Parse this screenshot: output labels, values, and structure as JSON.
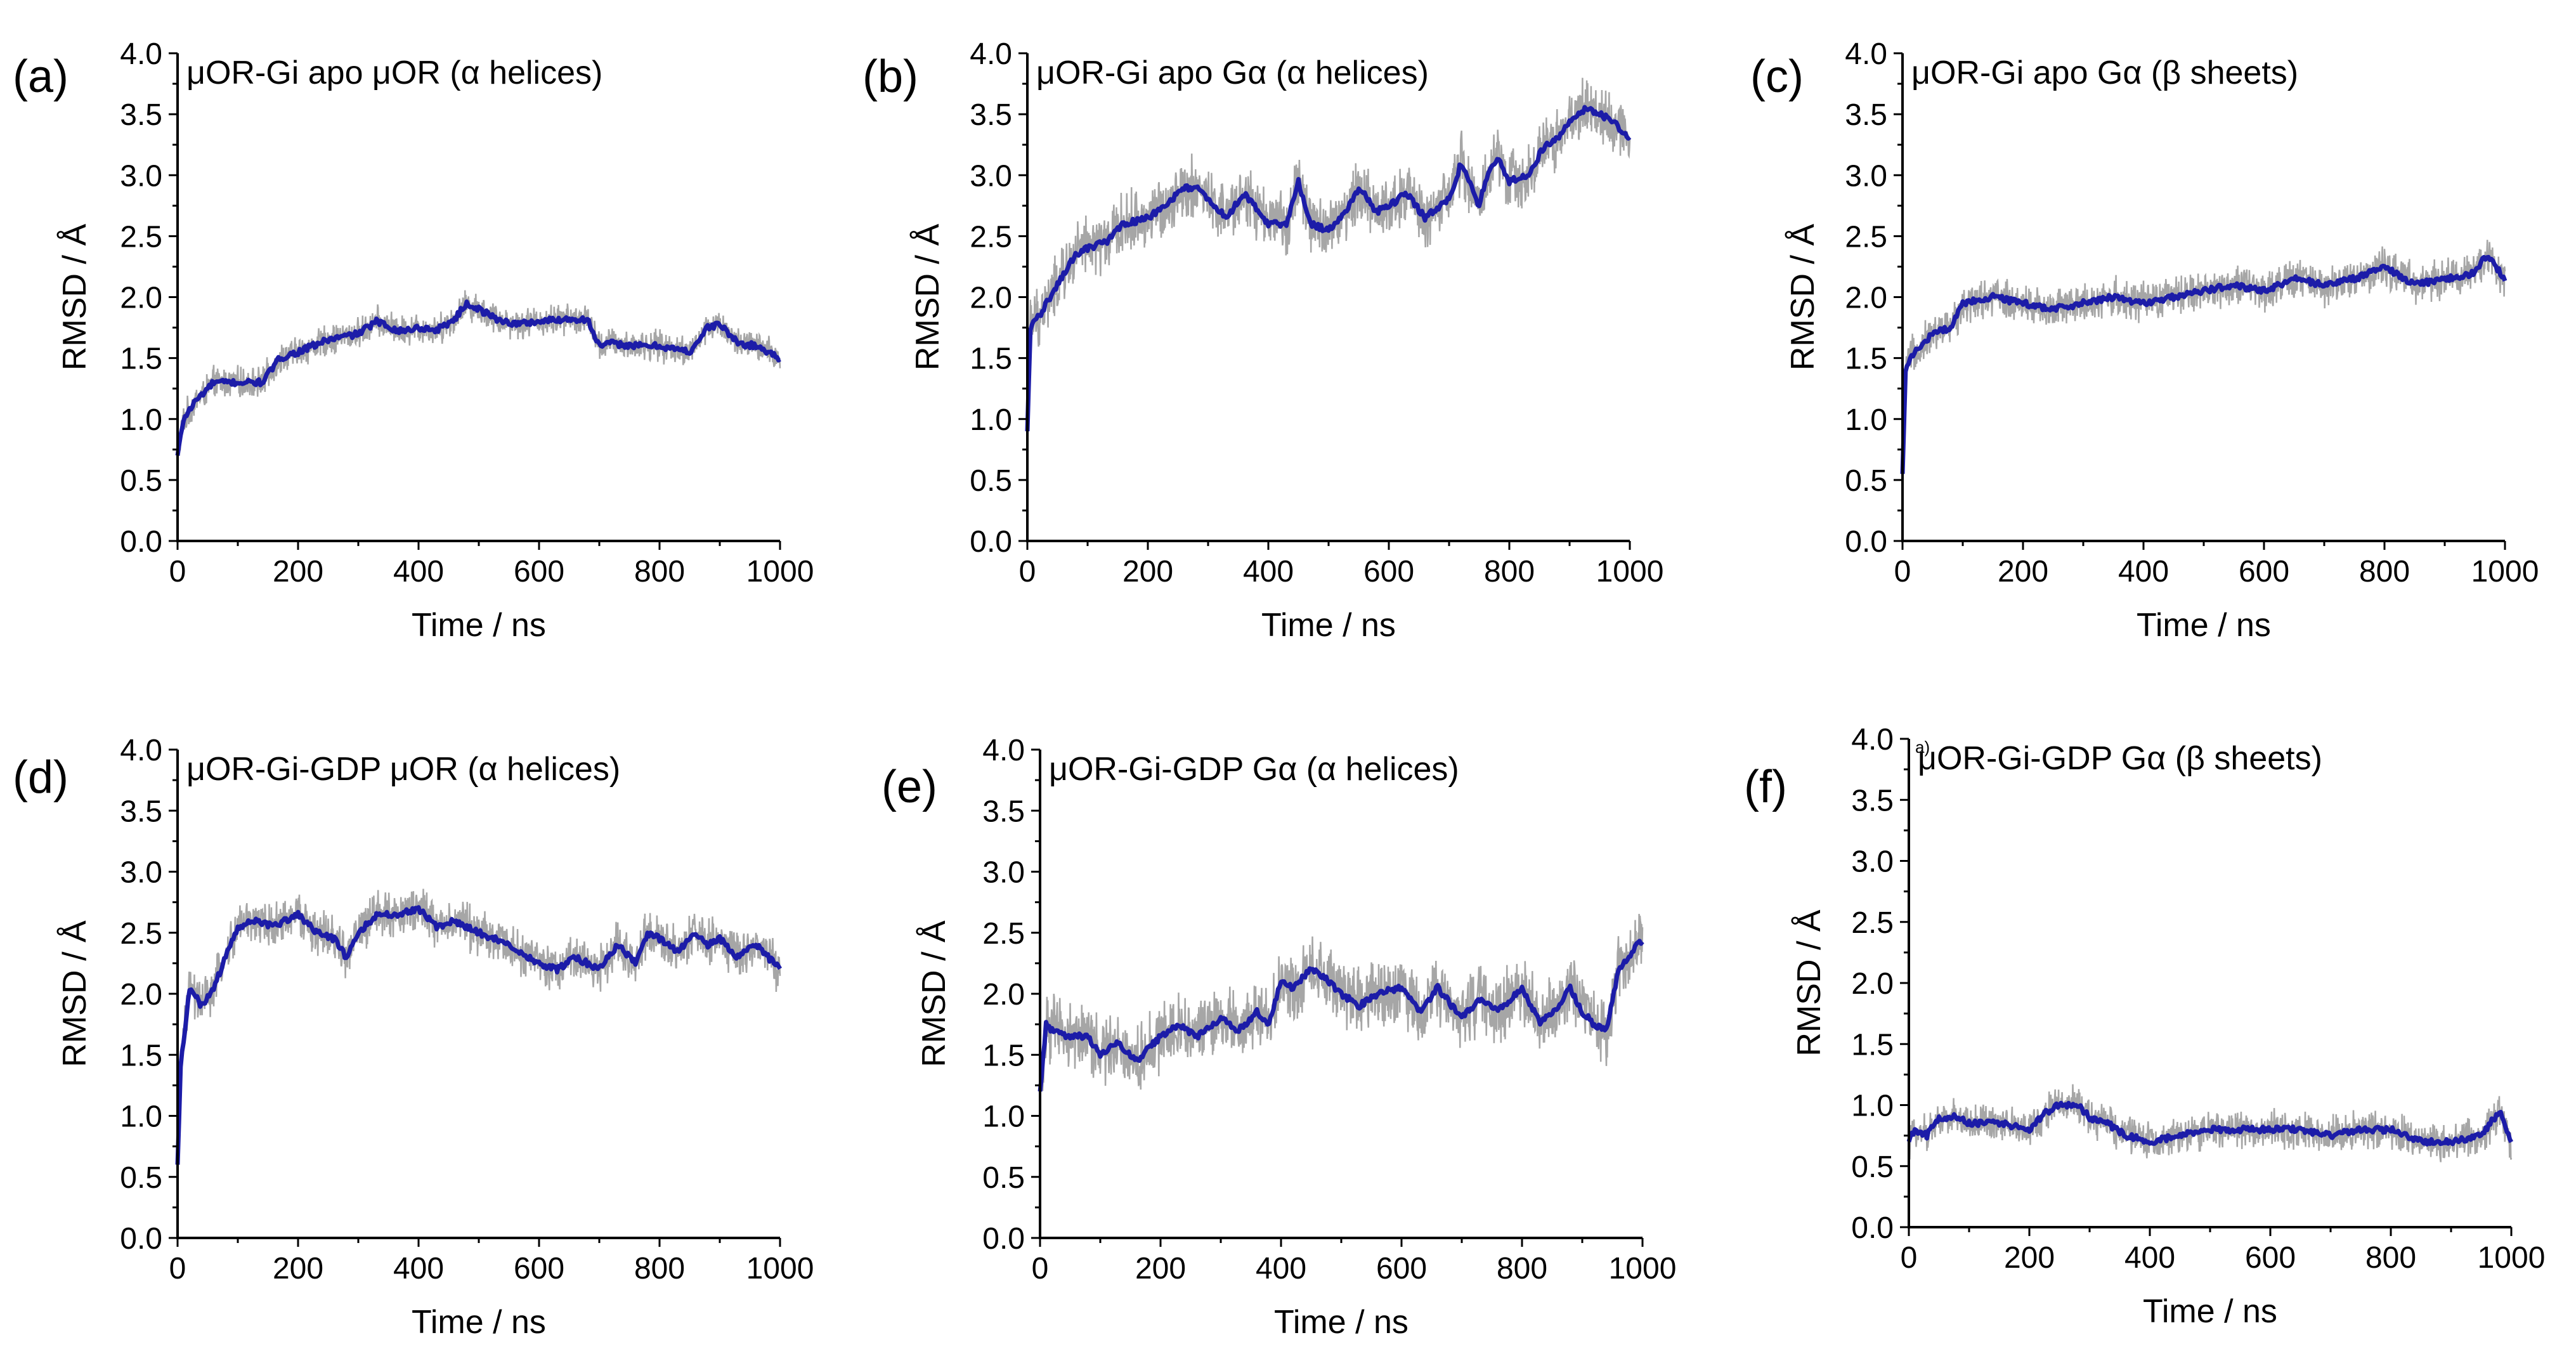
{
  "chart_data": [
    {
      "panel_label": "(a)",
      "title": "μOR-Gi apo μOR (α helices)",
      "type": "line",
      "xlabel": "Time / ns",
      "ylabel": "RMSD / Å",
      "xlim": [
        0,
        1000
      ],
      "ylim": [
        0.0,
        4.0
      ],
      "xticks": [
        "0",
        "200",
        "400",
        "600",
        "800",
        "1000"
      ],
      "yticks": [
        "0.0",
        "0.5",
        "1.0",
        "1.5",
        "2.0",
        "2.5",
        "3.0",
        "3.5",
        "4.0"
      ],
      "series": [
        {
          "name": "raw",
          "color": "#a6a6a6",
          "noise": 0.1
        },
        {
          "name": "running average",
          "color": "#1c1ca8",
          "x": [
            0,
            10,
            30,
            60,
            100,
            140,
            170,
            200,
            250,
            300,
            330,
            370,
            400,
            430,
            460,
            480,
            500,
            530,
            560,
            600,
            640,
            680,
            700,
            720,
            760,
            800,
            850,
            880,
            900,
            930,
            960,
            1000
          ],
          "y": [
            0.7,
            1.0,
            1.15,
            1.3,
            1.3,
            1.3,
            1.5,
            1.55,
            1.65,
            1.7,
            1.8,
            1.72,
            1.75,
            1.73,
            1.82,
            1.95,
            1.9,
            1.82,
            1.78,
            1.8,
            1.82,
            1.82,
            1.6,
            1.62,
            1.6,
            1.6,
            1.55,
            1.75,
            1.78,
            1.62,
            1.6,
            1.5
          ]
        }
      ]
    },
    {
      "panel_label": "(b)",
      "title": "μOR-Gi apo Gα (α helices)",
      "type": "line",
      "xlabel": "Time / ns",
      "ylabel": "RMSD / Å",
      "xlim": [
        0,
        1000
      ],
      "ylim": [
        0.0,
        4.0
      ],
      "xticks": [
        "0",
        "200",
        "400",
        "600",
        "800",
        "1000"
      ],
      "yticks": [
        "0.0",
        "0.5",
        "1.0",
        "1.5",
        "2.0",
        "2.5",
        "3.0",
        "3.5",
        "4.0"
      ],
      "series": [
        {
          "name": "raw",
          "color": "#a6a6a6",
          "noise": 0.2
        },
        {
          "name": "running average",
          "color": "#1c1ca8",
          "x": [
            0,
            5,
            20,
            50,
            80,
            100,
            130,
            160,
            200,
            230,
            260,
            280,
            300,
            330,
            360,
            400,
            430,
            450,
            470,
            500,
            530,
            550,
            580,
            600,
            630,
            660,
            700,
            720,
            750,
            760,
            780,
            800,
            830,
            860,
            880,
            900,
            930,
            950,
            970,
            1000
          ],
          "y": [
            0.9,
            1.75,
            1.85,
            2.1,
            2.35,
            2.4,
            2.45,
            2.6,
            2.65,
            2.75,
            2.9,
            2.9,
            2.8,
            2.65,
            2.85,
            2.6,
            2.6,
            2.95,
            2.6,
            2.55,
            2.7,
            2.9,
            2.7,
            2.75,
            2.85,
            2.65,
            2.8,
            3.1,
            2.75,
            2.95,
            3.15,
            2.95,
            3.0,
            3.25,
            3.3,
            3.45,
            3.55,
            3.5,
            3.45,
            3.3
          ]
        }
      ]
    },
    {
      "panel_label": "(c)",
      "title": "μOR-Gi apo Gα (β sheets)",
      "type": "line",
      "xlabel": "Time / ns",
      "ylabel": "RMSD / Å",
      "xlim": [
        0,
        1000
      ],
      "ylim": [
        0.0,
        4.0
      ],
      "xticks": [
        "0",
        "200",
        "400",
        "600",
        "800",
        "1000"
      ],
      "yticks": [
        "0.0",
        "0.5",
        "1.0",
        "1.5",
        "2.0",
        "2.5",
        "3.0",
        "3.5",
        "4.0"
      ],
      "series": [
        {
          "name": "raw",
          "color": "#a6a6a6",
          "noise": 0.13
        },
        {
          "name": "running average",
          "color": "#1c1ca8",
          "x": [
            0,
            5,
            20,
            50,
            80,
            100,
            150,
            200,
            250,
            300,
            350,
            400,
            450,
            500,
            550,
            600,
            650,
            700,
            750,
            800,
            850,
            900,
            950,
            970,
            1000
          ],
          "y": [
            0.55,
            1.4,
            1.55,
            1.7,
            1.75,
            1.95,
            2.0,
            1.95,
            1.9,
            1.95,
            2.0,
            1.95,
            2.0,
            2.05,
            2.1,
            2.05,
            2.15,
            2.1,
            2.15,
            2.25,
            2.1,
            2.15,
            2.2,
            2.35,
            2.15
          ]
        }
      ]
    },
    {
      "panel_label": "(d)",
      "title": "μOR-Gi-GDP μOR (α helices)",
      "type": "line",
      "xlabel": "Time / ns",
      "ylabel": "RMSD / Å",
      "xlim": [
        0,
        1000
      ],
      "ylim": [
        0.0,
        4.0
      ],
      "xticks": [
        "0",
        "200",
        "400",
        "600",
        "800",
        "1000"
      ],
      "yticks": [
        "0.0",
        "0.5",
        "1.0",
        "1.5",
        "2.0",
        "2.5",
        "3.0",
        "3.5",
        "4.0"
      ],
      "series": [
        {
          "name": "raw",
          "color": "#a6a6a6",
          "noise": 0.15
        },
        {
          "name": "running average",
          "color": "#1c1ca8",
          "x": [
            0,
            5,
            20,
            40,
            60,
            80,
            100,
            130,
            160,
            200,
            230,
            260,
            280,
            300,
            330,
            360,
            400,
            430,
            460,
            500,
            550,
            600,
            630,
            660,
            700,
            730,
            760,
            780,
            800,
            830,
            860,
            880,
            900,
            930,
            960,
            1000
          ],
          "y": [
            0.6,
            1.4,
            2.05,
            1.9,
            2.05,
            2.3,
            2.55,
            2.6,
            2.55,
            2.65,
            2.5,
            2.45,
            2.3,
            2.5,
            2.65,
            2.65,
            2.7,
            2.55,
            2.6,
            2.5,
            2.4,
            2.25,
            2.2,
            2.3,
            2.2,
            2.4,
            2.25,
            2.5,
            2.45,
            2.35,
            2.5,
            2.4,
            2.45,
            2.3,
            2.4,
            2.2
          ]
        }
      ]
    },
    {
      "panel_label": "(e)",
      "title": "μOR-Gi-GDP Gα (α helices)",
      "type": "line",
      "xlabel": "Time / ns",
      "ylabel": "RMSD / Å",
      "xlim": [
        0,
        1000
      ],
      "ylim": [
        0.0,
        4.0
      ],
      "xticks": [
        "0",
        "200",
        "400",
        "600",
        "800",
        "1000"
      ],
      "yticks": [
        "0.0",
        "0.5",
        "1.0",
        "1.5",
        "2.0",
        "2.5",
        "3.0",
        "3.5",
        "4.0"
      ],
      "series": [
        {
          "name": "raw",
          "color": "#a6a6a6",
          "noise": 0.22
        },
        {
          "name": "running average",
          "color": "#1c1ca8",
          "x": [
            0,
            10,
            20,
            50,
            80,
            100,
            130,
            160,
            200,
            230,
            260,
            300,
            330,
            360,
            380,
            400,
            420,
            450,
            480,
            500,
            530,
            560,
            600,
            630,
            660,
            700,
            730,
            760,
            800,
            830,
            860,
            880,
            900,
            920,
            940,
            960,
            1000
          ],
          "y": [
            1.2,
            1.75,
            1.7,
            1.65,
            1.65,
            1.5,
            1.6,
            1.45,
            1.65,
            1.75,
            1.65,
            1.8,
            1.7,
            1.85,
            1.75,
            2.1,
            2.05,
            2.2,
            2.1,
            2.0,
            1.9,
            2.0,
            2.05,
            1.85,
            2.05,
            1.8,
            1.95,
            1.85,
            2.05,
            1.75,
            1.9,
            2.05,
            1.85,
            1.75,
            1.7,
            2.2,
            2.45
          ]
        }
      ]
    },
    {
      "panel_label": "(f)",
      "title": "μOR-Gi-GDP Gα (β sheets)",
      "overlay_note": "a)",
      "type": "line",
      "xlabel": "Time / ns",
      "ylabel": "RMSD / Å",
      "xlim": [
        0,
        1000
      ],
      "ylim": [
        0.0,
        4.0
      ],
      "xticks": [
        "0",
        "200",
        "400",
        "600",
        "800",
        "1000"
      ],
      "yticks": [
        "0.0",
        "0.5",
        "1.0",
        "1.5",
        "2.0",
        "2.5",
        "3.0",
        "3.5",
        "4.0"
      ],
      "series": [
        {
          "name": "raw",
          "color": "#a6a6a6",
          "noise": 0.12
        },
        {
          "name": "running average",
          "color": "#1c1ca8",
          "x": [
            0,
            10,
            30,
            50,
            80,
            100,
            150,
            200,
            230,
            250,
            280,
            300,
            330,
            360,
            400,
            450,
            500,
            550,
            600,
            650,
            700,
            750,
            800,
            850,
            900,
            950,
            980,
            1000
          ],
          "y": [
            0.7,
            0.8,
            0.75,
            0.9,
            0.9,
            0.85,
            0.85,
            0.8,
            0.95,
            1.0,
            1.0,
            0.9,
            0.85,
            0.75,
            0.7,
            0.75,
            0.8,
            0.8,
            0.8,
            0.8,
            0.75,
            0.8,
            0.8,
            0.7,
            0.7,
            0.75,
            0.95,
            0.7
          ]
        }
      ]
    }
  ]
}
